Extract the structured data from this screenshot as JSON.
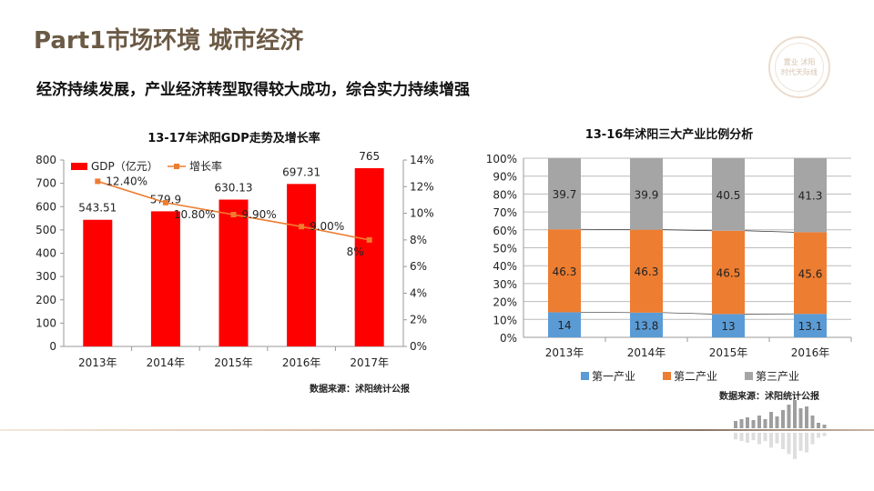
{
  "header": {
    "title": "Part1市场环境  城市经济",
    "subtitle": "经济持续发展，产业经济转型取得较大成功，综合实力持续增强",
    "seal_text": [
      "置业 沭阳",
      "时代天际线"
    ]
  },
  "colors": {
    "title": "#6b5a45",
    "gdp_bar": "#ff0000",
    "growth_line": "#ed7d31",
    "primary": "#5b9bd5",
    "secondary": "#ed7d31",
    "tertiary": "#a5a5a5"
  },
  "chart_data": [
    {
      "type": "bar",
      "title": "13-17年沭阳GDP走势及增长率",
      "categories": [
        "2013年",
        "2014年",
        "2015年",
        "2016年",
        "2017年"
      ],
      "series": [
        {
          "name": "GDP（亿元）",
          "type": "bar",
          "axis": "left",
          "values": [
            543.51,
            579.9,
            630.13,
            697.31,
            765
          ],
          "labels": [
            "543.51",
            "579.9",
            "630.13",
            "697.31",
            "765"
          ]
        },
        {
          "name": "增长率",
          "type": "line",
          "axis": "right",
          "values": [
            12.4,
            10.8,
            9.9,
            9.0,
            8.0
          ],
          "labels": [
            "12.40%",
            "10.80%",
            "9.90%",
            "9.00%",
            "8%"
          ]
        }
      ],
      "ylim": [
        0,
        800
      ],
      "yticks": [
        "0",
        "100",
        "200",
        "300",
        "400",
        "500",
        "600",
        "700",
        "800"
      ],
      "y2lim": [
        0,
        14
      ],
      "y2ticks": [
        "0%",
        "2%",
        "4%",
        "6%",
        "8%",
        "10%",
        "12%",
        "14%"
      ],
      "legend": "top",
      "grid": false,
      "source": "数据来源：沭阳统计公报"
    },
    {
      "type": "bar",
      "stacked": true,
      "title": "13-16年沭阳三大产业比例分析",
      "categories": [
        "2013年",
        "2014年",
        "2015年",
        "2016年"
      ],
      "series": [
        {
          "name": "第一产业",
          "values": [
            14,
            13.8,
            13,
            13.1
          ],
          "labels": [
            "14",
            "13.8",
            "13",
            "13.1"
          ]
        },
        {
          "name": "第二产业",
          "values": [
            46.3,
            46.3,
            46.5,
            45.6
          ],
          "labels": [
            "46.3",
            "46.3",
            "46.5",
            "45.6"
          ]
        },
        {
          "name": "第三产业",
          "values": [
            39.7,
            39.9,
            40.5,
            41.3
          ],
          "labels": [
            "39.7",
            "39.9",
            "40.5",
            "41.3"
          ]
        }
      ],
      "ylim": [
        0,
        100
      ],
      "yticks": [
        "0%",
        "10%",
        "20%",
        "30%",
        "40%",
        "50%",
        "60%",
        "70%",
        "80%",
        "90%",
        "100%"
      ],
      "legend": "bottom",
      "grid": true,
      "source": "数据来源：沭阳统计公报"
    }
  ]
}
